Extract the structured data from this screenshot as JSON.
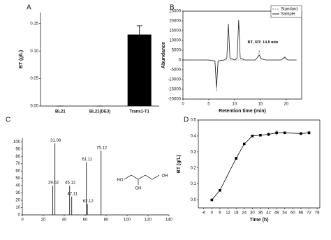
{
  "chart_data": [
    {
      "type": "bar",
      "panel": "A",
      "y_label": "BT (g/L)",
      "color": "#000000",
      "categories": [
        "BL21",
        "BL21(DE3)",
        "Trans1-T1"
      ],
      "values": [
        0,
        0,
        0.13
      ],
      "errors": [
        0,
        0,
        0.016
      ],
      "ylim": [
        0,
        0.17
      ],
      "yticks": [
        {
          "value": 0,
          "label": "0.00"
        },
        {
          "value": 0.05,
          "label": "0.05"
        },
        {
          "value": 0.1,
          "label": "0.10"
        },
        {
          "value": 0.15,
          "label": "0.15"
        }
      ]
    },
    {
      "type": "line",
      "panel": "B",
      "x_label": "Retention time (min)",
      "y_label": "Abundance",
      "annotation": "BT, RT: 14.8 min",
      "legend": "upper right",
      "x": [
        0,
        5,
        6.2,
        6.5,
        6.8,
        8,
        8.5,
        8.8,
        9.1,
        10,
        10.5,
        10.8,
        11.1,
        12,
        14,
        14.5,
        14.8,
        15.1,
        16,
        19,
        19.7,
        20.3,
        22
      ],
      "series": [
        {
          "name": "Standard",
          "color": "#888888",
          "dashed": true,
          "values": [
            0,
            0,
            -500,
            -16000,
            -500,
            0,
            0,
            0,
            0,
            0,
            0,
            0,
            0,
            0,
            0,
            1500,
            5000,
            500,
            0,
            0,
            1000,
            0,
            0
          ]
        },
        {
          "name": "Sample",
          "color": "#222222",
          "dashed": false,
          "values": [
            0,
            0,
            -500,
            -14000,
            -500,
            0,
            1000,
            18500,
            1000,
            0,
            1000,
            20500,
            1000,
            0,
            0,
            1500,
            2500,
            800,
            0,
            0,
            1500,
            0,
            0
          ]
        }
      ],
      "xlim": [
        0,
        23
      ],
      "xticks": [
        0,
        5,
        10,
        15,
        20
      ],
      "ylim": [
        -20000,
        25000
      ],
      "yticks": [
        -20000,
        -15000,
        -10000,
        -5000,
        0,
        5000,
        10000,
        15000,
        20000,
        25000
      ]
    },
    {
      "type": "stem",
      "panel": "C",
      "color": "#333333",
      "structure_labels": [
        "HO",
        "OH",
        "OH"
      ],
      "x": [
        29.02,
        31.08,
        45.12,
        47.11,
        61.11,
        62.12,
        75.12
      ],
      "values": [
        40,
        98,
        40,
        25,
        72,
        15,
        88
      ],
      "xlim": [
        0,
        140
      ],
      "xticks": [
        0,
        20,
        40,
        60,
        80,
        100,
        120,
        140
      ],
      "ylim": [
        0,
        105
      ],
      "yticks": [
        0,
        10,
        20,
        30,
        40,
        50,
        60,
        70,
        80,
        90,
        100
      ]
    },
    {
      "type": "line",
      "panel": "D",
      "x_label": "Time (h)",
      "y_label": "BT (g/L)",
      "markers": true,
      "x": [
        0,
        6,
        18,
        24,
        30,
        36,
        42,
        48,
        54,
        66,
        72
      ],
      "series": [
        {
          "color": "#000000",
          "dashed": false,
          "values": [
            0,
            0.06,
            0.26,
            0.35,
            0.4,
            0.405,
            0.41,
            0.42,
            0.42,
            0.415,
            0.42
          ],
          "errors": [
            0.003,
            0.004,
            0.008,
            0.006,
            0.005,
            0.005,
            0.01,
            0.015,
            0.005,
            0.008,
            0.01
          ]
        }
      ],
      "xlim": [
        -10,
        80
      ],
      "xticks": [
        -6,
        0,
        6,
        12,
        18,
        24,
        30,
        36,
        42,
        48,
        54,
        60,
        66,
        72,
        78
      ],
      "ylim": [
        -0.05,
        0.5
      ],
      "yticks": [
        {
          "value": 0,
          "label": "0.0"
        },
        {
          "value": 0.1,
          "label": "0.1"
        },
        {
          "value": 0.2,
          "label": "0.2"
        },
        {
          "value": 0.3,
          "label": "0.3"
        },
        {
          "value": 0.4,
          "label": "0.4"
        },
        {
          "value": 0.5,
          "label": "0.5"
        }
      ]
    }
  ]
}
